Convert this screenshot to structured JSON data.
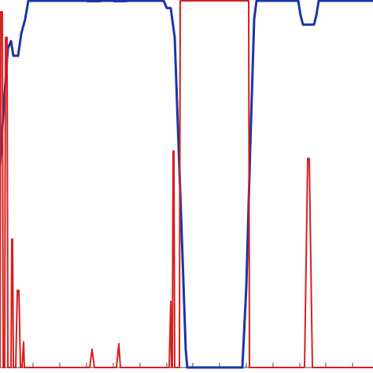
{
  "chart_data": {
    "type": "line",
    "title": "",
    "xlabel": "",
    "ylabel": "",
    "xlim": [
      0,
      474
    ],
    "ylim": [
      0,
      1
    ],
    "grid": false,
    "x_ticks": [
      42,
      76,
      110,
      144,
      178,
      212,
      245,
      279,
      313,
      347,
      381,
      414,
      448
    ],
    "series": [
      {
        "color": "#1a35a8",
        "points": [
          [
            0,
            0.55
          ],
          [
            5,
            0.72
          ],
          [
            10,
            0.87
          ],
          [
            14,
            0.89
          ],
          [
            17,
            0.85
          ],
          [
            23,
            0.85
          ],
          [
            27,
            0.91
          ],
          [
            32,
            0.95
          ],
          [
            36,
            1.0
          ],
          [
            45,
            1.0
          ],
          [
            110,
            1.0
          ],
          [
            112,
            0.999
          ],
          [
            127,
            0.999
          ],
          [
            130,
            1.0
          ],
          [
            144,
            1.0
          ],
          [
            145,
            0.999
          ],
          [
            160,
            0.999
          ],
          [
            163,
            1.0
          ],
          [
            208,
            1.0
          ],
          [
            212,
            0.98
          ],
          [
            217,
            0.98
          ],
          [
            222,
            0.9
          ],
          [
            227,
            0.6
          ],
          [
            232,
            0.3
          ],
          [
            236,
            0.05
          ],
          [
            238,
            0.0
          ],
          [
            308,
            0.0
          ],
          [
            313,
            0.22
          ],
          [
            318,
            0.6
          ],
          [
            323,
            0.95
          ],
          [
            326,
            1.0
          ],
          [
            379,
            1.0
          ],
          [
            382,
            0.96
          ],
          [
            385,
            0.935
          ],
          [
            399,
            0.935
          ],
          [
            402,
            0.96
          ],
          [
            405,
            1.0
          ],
          [
            474,
            1.0
          ]
        ]
      },
      {
        "color": "#d42020",
        "points": [
          [
            0,
            0.0
          ],
          [
            1,
            0.97
          ],
          [
            3,
            0.97
          ],
          [
            4,
            0.0
          ],
          [
            6,
            0.0
          ],
          [
            7,
            0.9
          ],
          [
            9,
            0.9
          ],
          [
            10,
            0.0
          ],
          [
            14,
            0.0
          ],
          [
            15,
            0.35
          ],
          [
            16,
            0.35
          ],
          [
            17,
            0.0
          ],
          [
            20,
            0.0
          ],
          [
            22,
            0.21
          ],
          [
            24,
            0.21
          ],
          [
            26,
            0.0
          ],
          [
            28,
            0.0
          ],
          [
            30,
            0.07
          ],
          [
            31,
            0.0
          ],
          [
            114,
            0.0
          ],
          [
            117,
            0.05
          ],
          [
            120,
            0.0
          ],
          [
            148,
            0.0
          ],
          [
            151,
            0.065
          ],
          [
            153,
            0.0
          ],
          [
            215,
            0.0
          ],
          [
            217,
            0.18
          ],
          [
            218,
            0.0
          ],
          [
            219,
            0.0
          ],
          [
            220,
            0.59
          ],
          [
            221,
            0.59
          ],
          [
            222,
            0.0
          ],
          [
            228,
            0.0
          ],
          [
            229,
            1.0
          ],
          [
            316,
            1.0
          ],
          [
            317,
            0.0
          ],
          [
            387,
            0.0
          ],
          [
            391,
            0.57
          ],
          [
            393,
            0.57
          ],
          [
            397,
            0.0
          ],
          [
            474,
            0.0
          ]
        ]
      }
    ]
  }
}
